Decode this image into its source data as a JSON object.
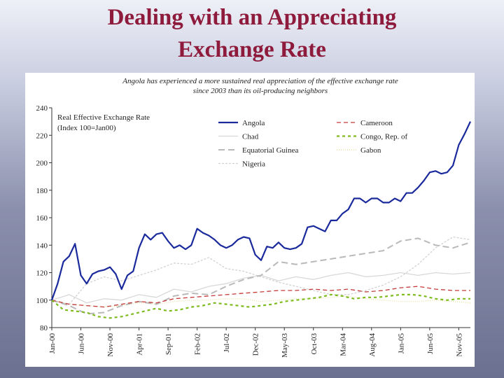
{
  "slide": {
    "title_line1": "Dealing with an Appreciating",
    "title_line2": "Exchange Rate"
  },
  "chart_data": {
    "type": "line",
    "subtitle_line1": "Angola has experienced a more sustained real appreciation of the effective exchange rate",
    "subtitle_line2": "since 2003 than its oil-producing neighbors",
    "inner_title_line1": "Real Effective Exchange Rate",
    "inner_title_line2": "(Index 100=Jan00)",
    "ylim": [
      80,
      240
    ],
    "yticks": [
      80,
      100,
      120,
      140,
      160,
      180,
      200,
      220,
      240
    ],
    "xlim": [
      0,
      72
    ],
    "x_ticks": [
      {
        "label": "Jan-00",
        "x": 0
      },
      {
        "label": "Jun-00",
        "x": 5
      },
      {
        "label": "Nov-00",
        "x": 10
      },
      {
        "label": "Apr-01",
        "x": 15
      },
      {
        "label": "Sep-01",
        "x": 20
      },
      {
        "label": "Feb-02",
        "x": 25
      },
      {
        "label": "Jul-02",
        "x": 30
      },
      {
        "label": "Dec-02",
        "x": 35
      },
      {
        "label": "May-03",
        "x": 40
      },
      {
        "label": "Oct-03",
        "x": 45
      },
      {
        "label": "Mar-04",
        "x": 50
      },
      {
        "label": "Aug-04",
        "x": 55
      },
      {
        "label": "Jan-05",
        "x": 60
      },
      {
        "label": "Jun-05",
        "x": 65
      },
      {
        "label": "Nov-05",
        "x": 70
      }
    ],
    "series": [
      {
        "name": "Angola",
        "color": "#1a2a9c",
        "dash": "",
        "width": 2.2,
        "values": [
          [
            0,
            100
          ],
          [
            1,
            112
          ],
          [
            2,
            128
          ],
          [
            3,
            132
          ],
          [
            4,
            141
          ],
          [
            5,
            118
          ],
          [
            6,
            112
          ],
          [
            7,
            119
          ],
          [
            8,
            121
          ],
          [
            9,
            122
          ],
          [
            10,
            124
          ],
          [
            11,
            119
          ],
          [
            12,
            108
          ],
          [
            13,
            118
          ],
          [
            14,
            121
          ],
          [
            15,
            138
          ],
          [
            16,
            148
          ],
          [
            17,
            144
          ],
          [
            18,
            148
          ],
          [
            19,
            149
          ],
          [
            20,
            143
          ],
          [
            21,
            138
          ],
          [
            22,
            140
          ],
          [
            23,
            137
          ],
          [
            24,
            140
          ],
          [
            25,
            152
          ],
          [
            26,
            149
          ],
          [
            27,
            147
          ],
          [
            28,
            144
          ],
          [
            29,
            140
          ],
          [
            30,
            138
          ],
          [
            31,
            140
          ],
          [
            32,
            144
          ],
          [
            33,
            146
          ],
          [
            34,
            145
          ],
          [
            35,
            133
          ],
          [
            36,
            129
          ],
          [
            37,
            139
          ],
          [
            38,
            138
          ],
          [
            39,
            142
          ],
          [
            40,
            138
          ],
          [
            41,
            137
          ],
          [
            42,
            138
          ],
          [
            43,
            141
          ],
          [
            44,
            153
          ],
          [
            45,
            154
          ],
          [
            46,
            152
          ],
          [
            47,
            150
          ],
          [
            48,
            158
          ],
          [
            49,
            158
          ],
          [
            50,
            163
          ],
          [
            51,
            166
          ],
          [
            52,
            174
          ],
          [
            53,
            174
          ],
          [
            54,
            171
          ],
          [
            55,
            174
          ],
          [
            56,
            174
          ],
          [
            57,
            171
          ],
          [
            58,
            171
          ],
          [
            59,
            174
          ],
          [
            60,
            172
          ],
          [
            61,
            178
          ],
          [
            62,
            178
          ],
          [
            63,
            182
          ],
          [
            64,
            187
          ],
          [
            65,
            193
          ],
          [
            66,
            194
          ],
          [
            67,
            192
          ],
          [
            68,
            193
          ],
          [
            69,
            198
          ],
          [
            70,
            213
          ],
          [
            71,
            221
          ],
          [
            72,
            230
          ]
        ]
      },
      {
        "name": "Chad",
        "color": "#d8d8d8",
        "dash": "",
        "width": 1.3,
        "values": [
          [
            0,
            100
          ],
          [
            3,
            104
          ],
          [
            6,
            98
          ],
          [
            9,
            101
          ],
          [
            12,
            100
          ],
          [
            15,
            104
          ],
          [
            18,
            102
          ],
          [
            21,
            108
          ],
          [
            24,
            106
          ],
          [
            27,
            110
          ],
          [
            30,
            112
          ],
          [
            33,
            116
          ],
          [
            36,
            118
          ],
          [
            39,
            114
          ],
          [
            42,
            117
          ],
          [
            45,
            115
          ],
          [
            48,
            118
          ],
          [
            51,
            120
          ],
          [
            54,
            117
          ],
          [
            57,
            118
          ],
          [
            60,
            120
          ],
          [
            63,
            118
          ],
          [
            66,
            120
          ],
          [
            69,
            119
          ],
          [
            72,
            120
          ]
        ]
      },
      {
        "name": "Equatorial Guinea",
        "color": "#b9b9b9",
        "dash": "9,5",
        "width": 2,
        "values": [
          [
            0,
            100
          ],
          [
            3,
            96
          ],
          [
            6,
            90
          ],
          [
            9,
            91
          ],
          [
            12,
            96
          ],
          [
            15,
            99
          ],
          [
            18,
            97
          ],
          [
            21,
            103
          ],
          [
            24,
            105
          ],
          [
            27,
            104
          ],
          [
            30,
            110
          ],
          [
            33,
            115
          ],
          [
            36,
            118
          ],
          [
            39,
            128
          ],
          [
            42,
            126
          ],
          [
            45,
            128
          ],
          [
            48,
            130
          ],
          [
            51,
            132
          ],
          [
            54,
            134
          ],
          [
            57,
            136
          ],
          [
            60,
            143
          ],
          [
            63,
            145
          ],
          [
            66,
            140
          ],
          [
            69,
            138
          ],
          [
            72,
            142
          ]
        ]
      },
      {
        "name": "Nigeria",
        "color": "#d2d2d2",
        "dash": "3,2",
        "width": 1.3,
        "values": [
          [
            0,
            100
          ],
          [
            3,
            97
          ],
          [
            6,
            112
          ],
          [
            9,
            117
          ],
          [
            12,
            114
          ],
          [
            15,
            118
          ],
          [
            18,
            122
          ],
          [
            21,
            127
          ],
          [
            24,
            126
          ],
          [
            27,
            131
          ],
          [
            30,
            123
          ],
          [
            33,
            121
          ],
          [
            36,
            117
          ],
          [
            39,
            113
          ],
          [
            42,
            110
          ],
          [
            45,
            107
          ],
          [
            48,
            104
          ],
          [
            51,
            104
          ],
          [
            54,
            107
          ],
          [
            57,
            111
          ],
          [
            60,
            117
          ],
          [
            63,
            126
          ],
          [
            66,
            138
          ],
          [
            69,
            146
          ],
          [
            72,
            144
          ]
        ]
      },
      {
        "name": "Cameroon",
        "color": "#c33a3a",
        "dash": "6,4",
        "width": 1.3,
        "values": [
          [
            0,
            100
          ],
          [
            3,
            97
          ],
          [
            6,
            96
          ],
          [
            9,
            95
          ],
          [
            12,
            97
          ],
          [
            15,
            99
          ],
          [
            18,
            98
          ],
          [
            21,
            101
          ],
          [
            24,
            102
          ],
          [
            27,
            103
          ],
          [
            30,
            104
          ],
          [
            33,
            105
          ],
          [
            36,
            106
          ],
          [
            39,
            107
          ],
          [
            42,
            107
          ],
          [
            45,
            108
          ],
          [
            48,
            107
          ],
          [
            51,
            108
          ],
          [
            54,
            106
          ],
          [
            57,
            107
          ],
          [
            60,
            109
          ],
          [
            63,
            110
          ],
          [
            66,
            108
          ],
          [
            69,
            107
          ],
          [
            72,
            107
          ]
        ]
      },
      {
        "name": "Congo, Rep. of",
        "color": "#7dbb1e",
        "dash": "4,4",
        "width": 2.2,
        "values": [
          [
            0,
            100
          ],
          [
            2,
            93
          ],
          [
            4,
            92
          ],
          [
            6,
            91
          ],
          [
            8,
            88
          ],
          [
            10,
            87
          ],
          [
            12,
            88
          ],
          [
            14,
            90
          ],
          [
            16,
            92
          ],
          [
            18,
            94
          ],
          [
            20,
            92
          ],
          [
            22,
            93
          ],
          [
            24,
            95
          ],
          [
            26,
            96
          ],
          [
            28,
            98
          ],
          [
            30,
            97
          ],
          [
            32,
            96
          ],
          [
            34,
            95
          ],
          [
            36,
            96
          ],
          [
            38,
            97
          ],
          [
            40,
            99
          ],
          [
            42,
            100
          ],
          [
            44,
            101
          ],
          [
            46,
            102
          ],
          [
            48,
            104
          ],
          [
            50,
            103
          ],
          [
            52,
            101
          ],
          [
            54,
            102
          ],
          [
            56,
            102
          ],
          [
            58,
            103
          ],
          [
            60,
            104
          ],
          [
            62,
            104
          ],
          [
            64,
            103
          ],
          [
            66,
            101
          ],
          [
            68,
            100
          ],
          [
            70,
            101
          ],
          [
            72,
            101
          ]
        ]
      },
      {
        "name": "Gabon",
        "color": "#e8e3a8",
        "dash": "1,2",
        "width": 1.4,
        "values": [
          [
            0,
            100
          ],
          [
            3,
            97
          ],
          [
            6,
            96
          ],
          [
            9,
            95
          ],
          [
            12,
            96
          ],
          [
            15,
            98
          ],
          [
            18,
            97
          ],
          [
            21,
            99
          ],
          [
            24,
            100
          ],
          [
            27,
            100
          ],
          [
            30,
            101
          ],
          [
            33,
            101
          ],
          [
            36,
            99
          ],
          [
            39,
            100
          ],
          [
            42,
            101
          ],
          [
            45,
            101
          ],
          [
            48,
            102
          ],
          [
            51,
            103
          ],
          [
            54,
            101
          ],
          [
            57,
            100
          ],
          [
            60,
            99
          ],
          [
            63,
            99
          ],
          [
            66,
            100
          ],
          [
            69,
            99
          ],
          [
            72,
            98
          ]
        ]
      }
    ],
    "legend": [
      {
        "name": "Angola",
        "series": 0
      },
      {
        "name": "Cameroon",
        "series": 4
      },
      {
        "name": "Chad",
        "series": 1
      },
      {
        "name": "Congo, Rep. of",
        "series": 5
      },
      {
        "name": "Equatorial Guinea",
        "series": 2
      },
      {
        "name": "Gabon",
        "series": 6
      },
      {
        "name": "Nigeria",
        "series": 3
      }
    ]
  }
}
